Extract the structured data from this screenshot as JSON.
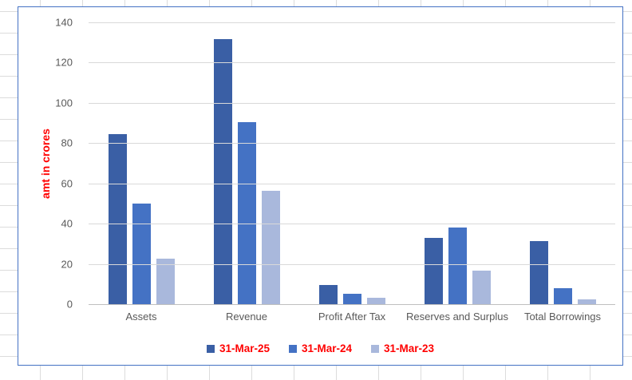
{
  "workbook": {
    "sheet_grid_color": "#dcdcdc",
    "chart_border_color": "#4472c4"
  },
  "chart": {
    "y_axis_title": "amt in crores",
    "y_axis_title_color": "#ff0000",
    "tick_label_color": "#595959",
    "category_label_color": "#595959",
    "gridline_color": "#d9d9d9",
    "axis_line_color": "#bfbfbf",
    "legend_text_color": "#ff0000",
    "plot_background": "#ffffff"
  },
  "chart_data": {
    "type": "bar",
    "title": "",
    "categories": [
      "Assets",
      "Revenue",
      "Profit After Tax",
      "Reserves and Surplus",
      "Total Borrowings"
    ],
    "series": [
      {
        "name": "31-Mar-25",
        "color": "#3a5fa5",
        "values": [
          84.5,
          131.5,
          9.5,
          33,
          31.5
        ]
      },
      {
        "name": "31-Mar-24",
        "color": "#4472c4",
        "values": [
          50,
          90.5,
          5,
          38,
          8
        ]
      },
      {
        "name": "31-Mar-23",
        "color": "#a9b8dc",
        "values": [
          22.5,
          56.5,
          3,
          16.5,
          2.5
        ]
      }
    ],
    "xlabel": "",
    "ylabel": "amt in crores",
    "ylim": [
      0,
      140
    ],
    "ytick_step": 20,
    "ytick_labels": [
      "0",
      "20",
      "40",
      "60",
      "80",
      "100",
      "120",
      "140"
    ],
    "grid": true,
    "legend_position": "bottom"
  }
}
